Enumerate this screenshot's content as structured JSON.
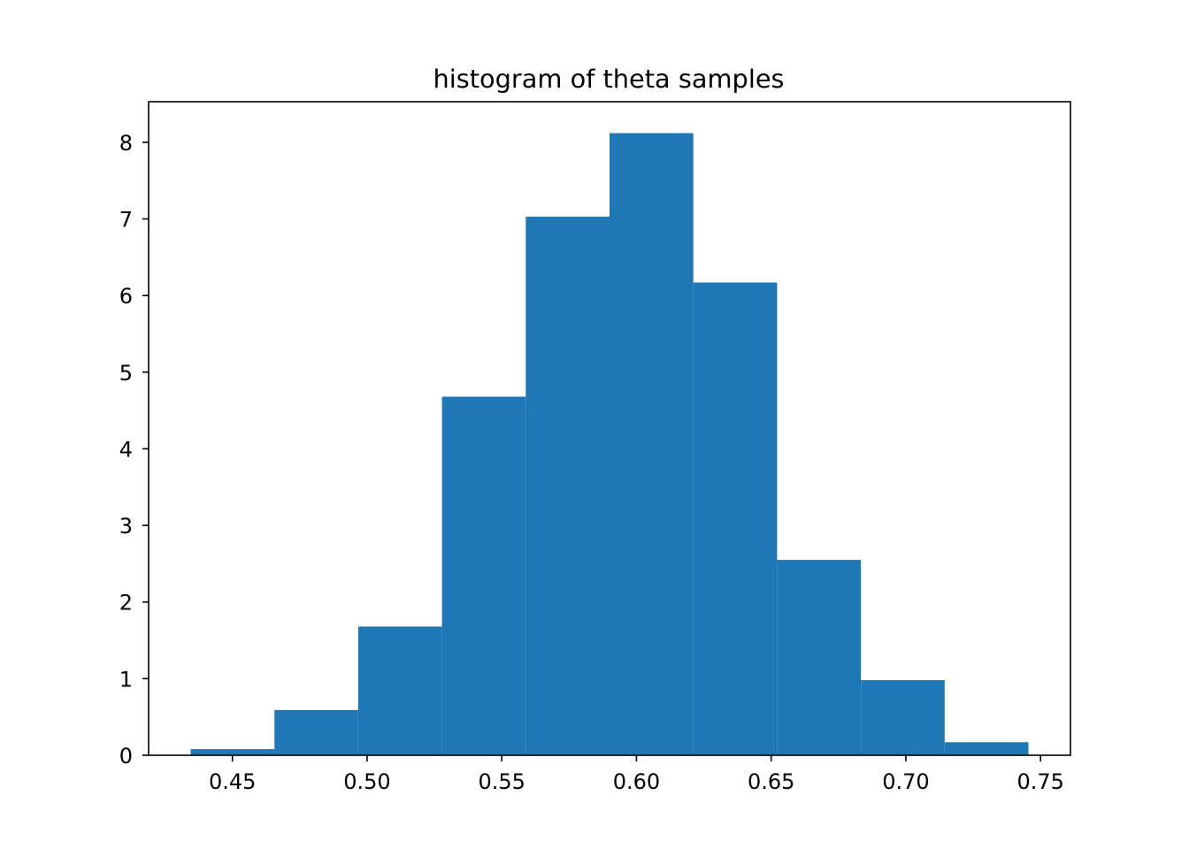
{
  "chart_data": {
    "type": "bar",
    "title": "histogram of theta samples",
    "xlabel": "",
    "ylabel": "",
    "bin_edges": [
      0.4345,
      0.4656,
      0.4967,
      0.5278,
      0.5589,
      0.59,
      0.6211,
      0.6522,
      0.6833,
      0.7144,
      0.7455
    ],
    "values": [
      0.08,
      0.59,
      1.68,
      4.68,
      7.03,
      8.12,
      6.17,
      2.55,
      0.98,
      0.17
    ],
    "xlim": [
      0.4189,
      0.7611
    ],
    "ylim": [
      0,
      8.53
    ],
    "xticks": [
      0.45,
      0.5,
      0.55,
      0.6,
      0.65,
      0.7,
      0.75
    ],
    "xtick_labels": [
      "0.45",
      "0.50",
      "0.55",
      "0.60",
      "0.65",
      "0.70",
      "0.75"
    ],
    "yticks": [
      0,
      1,
      2,
      3,
      4,
      5,
      6,
      7,
      8
    ],
    "ytick_labels": [
      "0",
      "1",
      "2",
      "3",
      "4",
      "5",
      "6",
      "7",
      "8"
    ],
    "bar_color": "#1f77b4",
    "grid": false,
    "legend": "none"
  }
}
